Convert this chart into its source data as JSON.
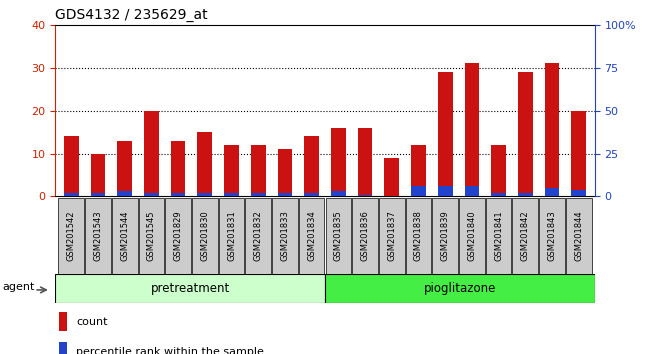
{
  "title": "GDS4132 / 235629_at",
  "samples": [
    "GSM201542",
    "GSM201543",
    "GSM201544",
    "GSM201545",
    "GSM201829",
    "GSM201830",
    "GSM201831",
    "GSM201832",
    "GSM201833",
    "GSM201834",
    "GSM201835",
    "GSM201836",
    "GSM201837",
    "GSM201838",
    "GSM201839",
    "GSM201840",
    "GSM201841",
    "GSM201842",
    "GSM201843",
    "GSM201844"
  ],
  "count_values": [
    14,
    10,
    13,
    20,
    13,
    15,
    12,
    12,
    11,
    14,
    16,
    16,
    9,
    12,
    29,
    31,
    12,
    29,
    31,
    20
  ],
  "percentile_values": [
    2,
    2,
    3,
    2,
    2,
    2,
    2,
    2,
    2,
    2,
    3,
    1,
    0,
    6,
    6,
    6,
    2,
    2,
    5,
    4
  ],
  "pretreatment_count": 10,
  "pioglitazone_count": 10,
  "bar_color_red": "#cc1111",
  "bar_color_blue": "#2244cc",
  "left_axis_color": "#cc2200",
  "right_axis_color": "#2244bb",
  "ylim_left": [
    0,
    40
  ],
  "ylim_right": [
    0,
    100
  ],
  "yticks_left": [
    0,
    10,
    20,
    30,
    40
  ],
  "yticks_right": [
    0,
    25,
    50,
    75,
    100
  ],
  "ytick_labels_right": [
    "0",
    "25",
    "50",
    "75",
    "100%"
  ],
  "group_labels": [
    "pretreatment",
    "pioglitazone"
  ],
  "pre_color": "#ccffcc",
  "pio_color": "#44ee44",
  "agent_label": "agent",
  "legend_count_label": "count",
  "legend_percentile_label": "percentile rank within the sample",
  "bar_width": 0.55,
  "tick_bg_color": "#cccccc",
  "plot_bg_color": "#ffffff",
  "figure_bg_color": "#ffffff"
}
